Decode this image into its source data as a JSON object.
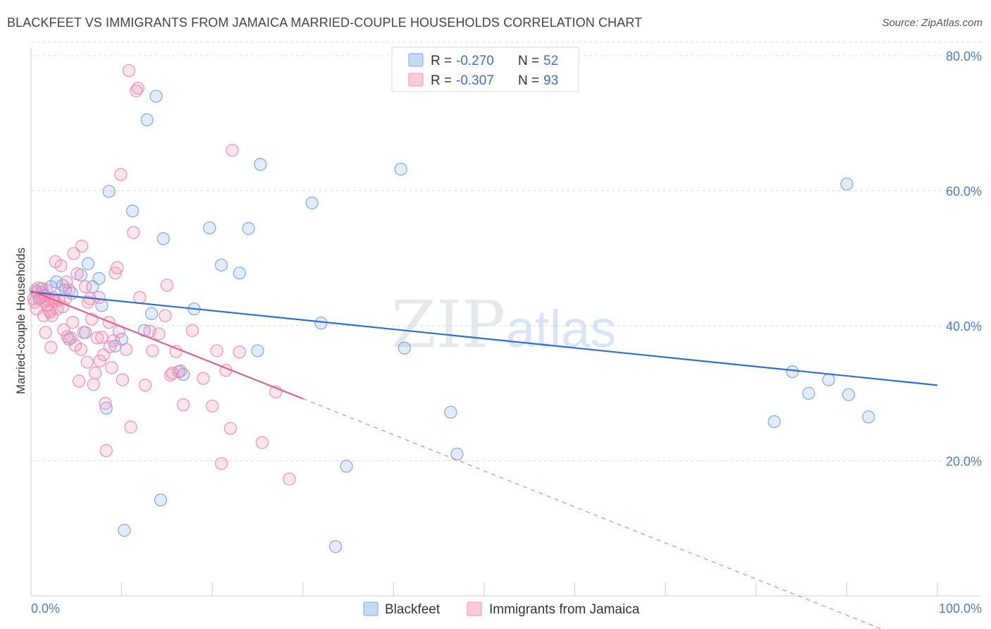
{
  "header": {
    "title": "BLACKFEET VS IMMIGRANTS FROM JAMAICA MARRIED-COUPLE HOUSEHOLDS CORRELATION CHART",
    "source": "Source: ZipAtlas.com"
  },
  "watermark": {
    "zip": "ZIP",
    "atlas": "atlas"
  },
  "stats_legend": {
    "r_label": "R =",
    "n_label": "N =",
    "rows": [
      {
        "r": "-0.270",
        "n": "52",
        "color": "#a8c6f0"
      },
      {
        "r": "-0.307",
        "n": "93",
        "color": "#f7b6c9"
      }
    ]
  },
  "chart_data": {
    "type": "scatter",
    "title": "BLACKFEET VS IMMIGRANTS FROM JAMAICA MARRIED-COUPLE HOUSEHOLDS CORRELATION CHART",
    "xlabel": "",
    "ylabel": "Married-couple Households",
    "xlim": [
      0,
      100
    ],
    "ylim": [
      0,
      82
    ],
    "x_tick_labels": [
      "0.0%",
      "100.0%"
    ],
    "y_ticks": [
      20,
      40,
      60,
      80
    ],
    "y_tick_labels": [
      "20.0%",
      "40.0%",
      "60.0%",
      "80.0%"
    ],
    "grid": true,
    "legend_position": "bottom",
    "series": [
      {
        "name": "Blackfeet",
        "color": "#7fa8e8",
        "line_color": "#2f6fd0",
        "trend": {
          "x": [
            0,
            100
          ],
          "y": [
            45.0,
            31.2
          ]
        },
        "points": [
          [
            0.6,
            45
          ],
          [
            0.9,
            44
          ],
          [
            1.2,
            45.5
          ],
          [
            1.5,
            44.5
          ],
          [
            2.2,
            45.8
          ],
          [
            2.8,
            46.5
          ],
          [
            3.5,
            46
          ],
          [
            3.8,
            45.3
          ],
          [
            4.2,
            38
          ],
          [
            5.5,
            47.5
          ],
          [
            6,
            39
          ],
          [
            6.3,
            49.2
          ],
          [
            6.8,
            45.8
          ],
          [
            7.5,
            47
          ],
          [
            7.8,
            43
          ],
          [
            8.3,
            27.8
          ],
          [
            8.6,
            59.9
          ],
          [
            9.3,
            37
          ],
          [
            10,
            38
          ],
          [
            10.3,
            9.7
          ],
          [
            11.2,
            57
          ],
          [
            12.5,
            39.3
          ],
          [
            12.8,
            70.5
          ],
          [
            13.3,
            41.8
          ],
          [
            13.8,
            74
          ],
          [
            14.3,
            14.2
          ],
          [
            14.6,
            52.9
          ],
          [
            16.3,
            33.2
          ],
          [
            16.8,
            32.8
          ],
          [
            18,
            42.5
          ],
          [
            19.7,
            54.5
          ],
          [
            21,
            49
          ],
          [
            23,
            47.8
          ],
          [
            24,
            54.4
          ],
          [
            25,
            36.3
          ],
          [
            25.3,
            63.9
          ],
          [
            31,
            58.2
          ],
          [
            32,
            40.4
          ],
          [
            33.6,
            7.3
          ],
          [
            34.8,
            19.2
          ],
          [
            40.8,
            63.2
          ],
          [
            41.2,
            36.7
          ],
          [
            46.3,
            27.2
          ],
          [
            47,
            21
          ],
          [
            82,
            25.8
          ],
          [
            84,
            33.2
          ],
          [
            85.8,
            30
          ],
          [
            88,
            32
          ],
          [
            90,
            61
          ],
          [
            90.2,
            29.8
          ],
          [
            92.4,
            26.5
          ],
          [
            4.5,
            44.8
          ]
        ]
      },
      {
        "name": "Immigrants from Jamaica",
        "color": "#f38fb0",
        "line_color": "#e0608e",
        "trend": {
          "x": [
            0,
            30
          ],
          "y": [
            45.2,
            29.2
          ]
        },
        "trend_extension": {
          "x": [
            30,
            100
          ],
          "y": [
            29.2,
            -8.2
          ]
        },
        "points": [
          [
            0.3,
            44
          ],
          [
            0.4,
            43.5
          ],
          [
            0.5,
            45.3
          ],
          [
            0.6,
            42.5
          ],
          [
            0.8,
            45.6
          ],
          [
            1,
            44.2
          ],
          [
            1.2,
            44.9
          ],
          [
            1.3,
            43.7
          ],
          [
            1.4,
            41.5
          ],
          [
            1.5,
            44.4
          ],
          [
            1.6,
            39
          ],
          [
            1.7,
            45.3
          ],
          [
            1.8,
            43
          ],
          [
            1.9,
            43.8
          ],
          [
            2,
            42.3
          ],
          [
            2.1,
            42
          ],
          [
            2.2,
            36.8
          ],
          [
            2.3,
            41.5
          ],
          [
            2.4,
            43.8
          ],
          [
            2.5,
            44.1
          ],
          [
            2.6,
            43.6
          ],
          [
            2.7,
            49.5
          ],
          [
            2.9,
            42.5
          ],
          [
            3.1,
            43.8
          ],
          [
            3.3,
            48.9
          ],
          [
            3.5,
            42.8
          ],
          [
            3.6,
            39.4
          ],
          [
            3.8,
            44
          ],
          [
            3.9,
            46.5
          ],
          [
            4,
            38.4
          ],
          [
            4.2,
            45.3
          ],
          [
            4.4,
            38.2
          ],
          [
            4.6,
            40.5
          ],
          [
            4.7,
            50.7
          ],
          [
            4.9,
            37.1
          ],
          [
            5.1,
            47.7
          ],
          [
            5.3,
            31.8
          ],
          [
            5.5,
            36.5
          ],
          [
            5.6,
            51.8
          ],
          [
            5.8,
            39
          ],
          [
            6,
            45.8
          ],
          [
            6.2,
            34.6
          ],
          [
            6.3,
            43.5
          ],
          [
            6.5,
            44
          ],
          [
            6.7,
            41
          ],
          [
            6.9,
            31.3
          ],
          [
            7.1,
            33
          ],
          [
            7.3,
            38.2
          ],
          [
            7.5,
            44.2
          ],
          [
            7.6,
            34.8
          ],
          [
            7.8,
            38.3
          ],
          [
            8,
            35.7
          ],
          [
            8.2,
            28.5
          ],
          [
            8.3,
            21.5
          ],
          [
            8.6,
            40.5
          ],
          [
            8.7,
            36.9
          ],
          [
            8.9,
            33.8
          ],
          [
            9.1,
            37.8
          ],
          [
            9.3,
            47.8
          ],
          [
            9.5,
            48.6
          ],
          [
            9.7,
            39.1
          ],
          [
            9.9,
            62.4
          ],
          [
            10.1,
            32
          ],
          [
            10.5,
            36.5
          ],
          [
            10.8,
            77.8
          ],
          [
            11,
            25
          ],
          [
            11.3,
            53.8
          ],
          [
            11.6,
            74.8
          ],
          [
            11.8,
            75.2
          ],
          [
            12,
            44.2
          ],
          [
            12.6,
            31.2
          ],
          [
            13.1,
            39.2
          ],
          [
            13.4,
            36.3
          ],
          [
            14.1,
            38.8
          ],
          [
            14.8,
            41.5
          ],
          [
            15,
            46
          ],
          [
            15.4,
            32.7
          ],
          [
            15.6,
            33
          ],
          [
            16,
            36.2
          ],
          [
            16.5,
            33.3
          ],
          [
            16.8,
            28.3
          ],
          [
            17.8,
            39.3
          ],
          [
            19,
            32.2
          ],
          [
            20,
            28.1
          ],
          [
            20.5,
            36.3
          ],
          [
            21,
            19.6
          ],
          [
            21.5,
            33.4
          ],
          [
            22,
            24.8
          ],
          [
            22.2,
            66
          ],
          [
            23,
            36.1
          ],
          [
            25.5,
            22.7
          ],
          [
            27,
            30.2
          ],
          [
            28.5,
            17.3
          ]
        ]
      }
    ]
  }
}
